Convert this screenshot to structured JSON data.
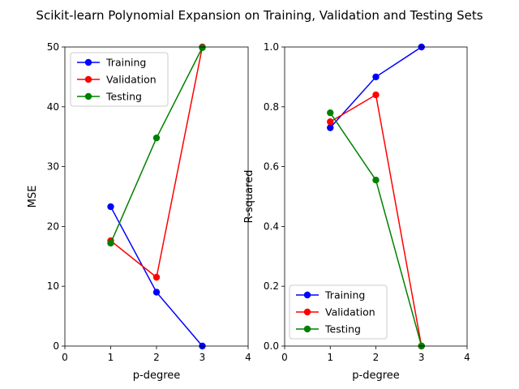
{
  "suptitle": "Scikit-learn Polynomial Expansion on Training, Validation and Testing Sets",
  "chart_data": [
    {
      "type": "line",
      "xlabel": "p-degree",
      "ylabel": "MSE",
      "xlim": [
        0,
        4
      ],
      "ylim": [
        0,
        50
      ],
      "xticks": [
        "0",
        "1",
        "2",
        "3",
        "4"
      ],
      "yticks": [
        "0",
        "10",
        "20",
        "30",
        "40",
        "50"
      ],
      "grid": false,
      "legend_loc": "upper left",
      "x": [
        1,
        2,
        3
      ],
      "series": [
        {
          "name": "Training",
          "color": "#0000ff",
          "values": [
            23.3,
            9.0,
            0.0
          ]
        },
        {
          "name": "Validation",
          "color": "#ff0000",
          "values": [
            17.6,
            11.5,
            50.0
          ]
        },
        {
          "name": "Testing",
          "color": "#008000",
          "values": [
            17.2,
            34.8,
            49.9
          ]
        }
      ]
    },
    {
      "type": "line",
      "xlabel": "p-degree",
      "ylabel": "R-squared",
      "xlim": [
        0,
        4
      ],
      "ylim": [
        0,
        1.0
      ],
      "xticks": [
        "0",
        "1",
        "2",
        "3",
        "4"
      ],
      "yticks": [
        "0.0",
        "0.2",
        "0.4",
        "0.6",
        "0.8",
        "1.0"
      ],
      "grid": false,
      "legend_loc": "lower left",
      "x": [
        1,
        2,
        3
      ],
      "series": [
        {
          "name": "Training",
          "color": "#0000ff",
          "values": [
            0.73,
            0.9,
            1.0
          ]
        },
        {
          "name": "Validation",
          "color": "#ff0000",
          "values": [
            0.75,
            0.84,
            0.0
          ]
        },
        {
          "name": "Testing",
          "color": "#008000",
          "values": [
            0.78,
            0.555,
            0.0
          ]
        }
      ]
    }
  ]
}
